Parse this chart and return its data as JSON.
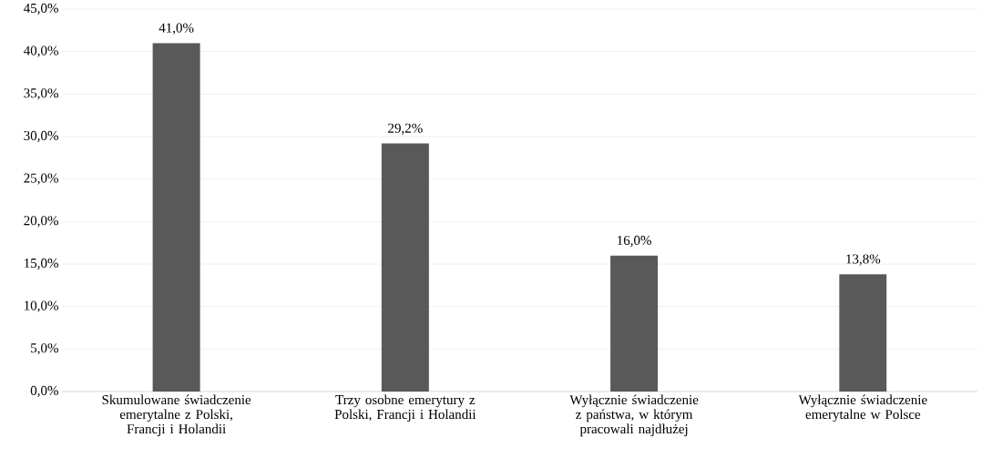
{
  "chart_data": {
    "type": "bar",
    "categories": [
      "Skumulowane świadczenie emerytalne z Polski, Francji i Holandii",
      "Trzy osobne emerytury z Polski, Francji i Holandii",
      "Wyłącznie świadczenie z państwa, w którym pracowali najdłużej",
      "Wyłącznie świadczenie emerytalne w Polsce"
    ],
    "values": [
      41.0,
      29.2,
      16.0,
      13.8
    ],
    "value_labels": [
      "41,0%",
      "29,2%",
      "16,0%",
      "13,8%"
    ],
    "color": "#595959",
    "ylim": [
      0,
      45
    ],
    "yticks": [
      {
        "value": 0,
        "label": "0,0%"
      },
      {
        "value": 5,
        "label": "5,0%"
      },
      {
        "value": 10,
        "label": "10,0%"
      },
      {
        "value": 15,
        "label": "15,0%"
      },
      {
        "value": 20,
        "label": "20,0%"
      },
      {
        "value": 25,
        "label": "25,0%"
      },
      {
        "value": 30,
        "label": "30,0%"
      },
      {
        "value": 35,
        "label": "35,0%"
      },
      {
        "value": 40,
        "label": "40,0%"
      },
      {
        "value": 45,
        "label": "45,0%"
      }
    ],
    "grid": "y"
  }
}
